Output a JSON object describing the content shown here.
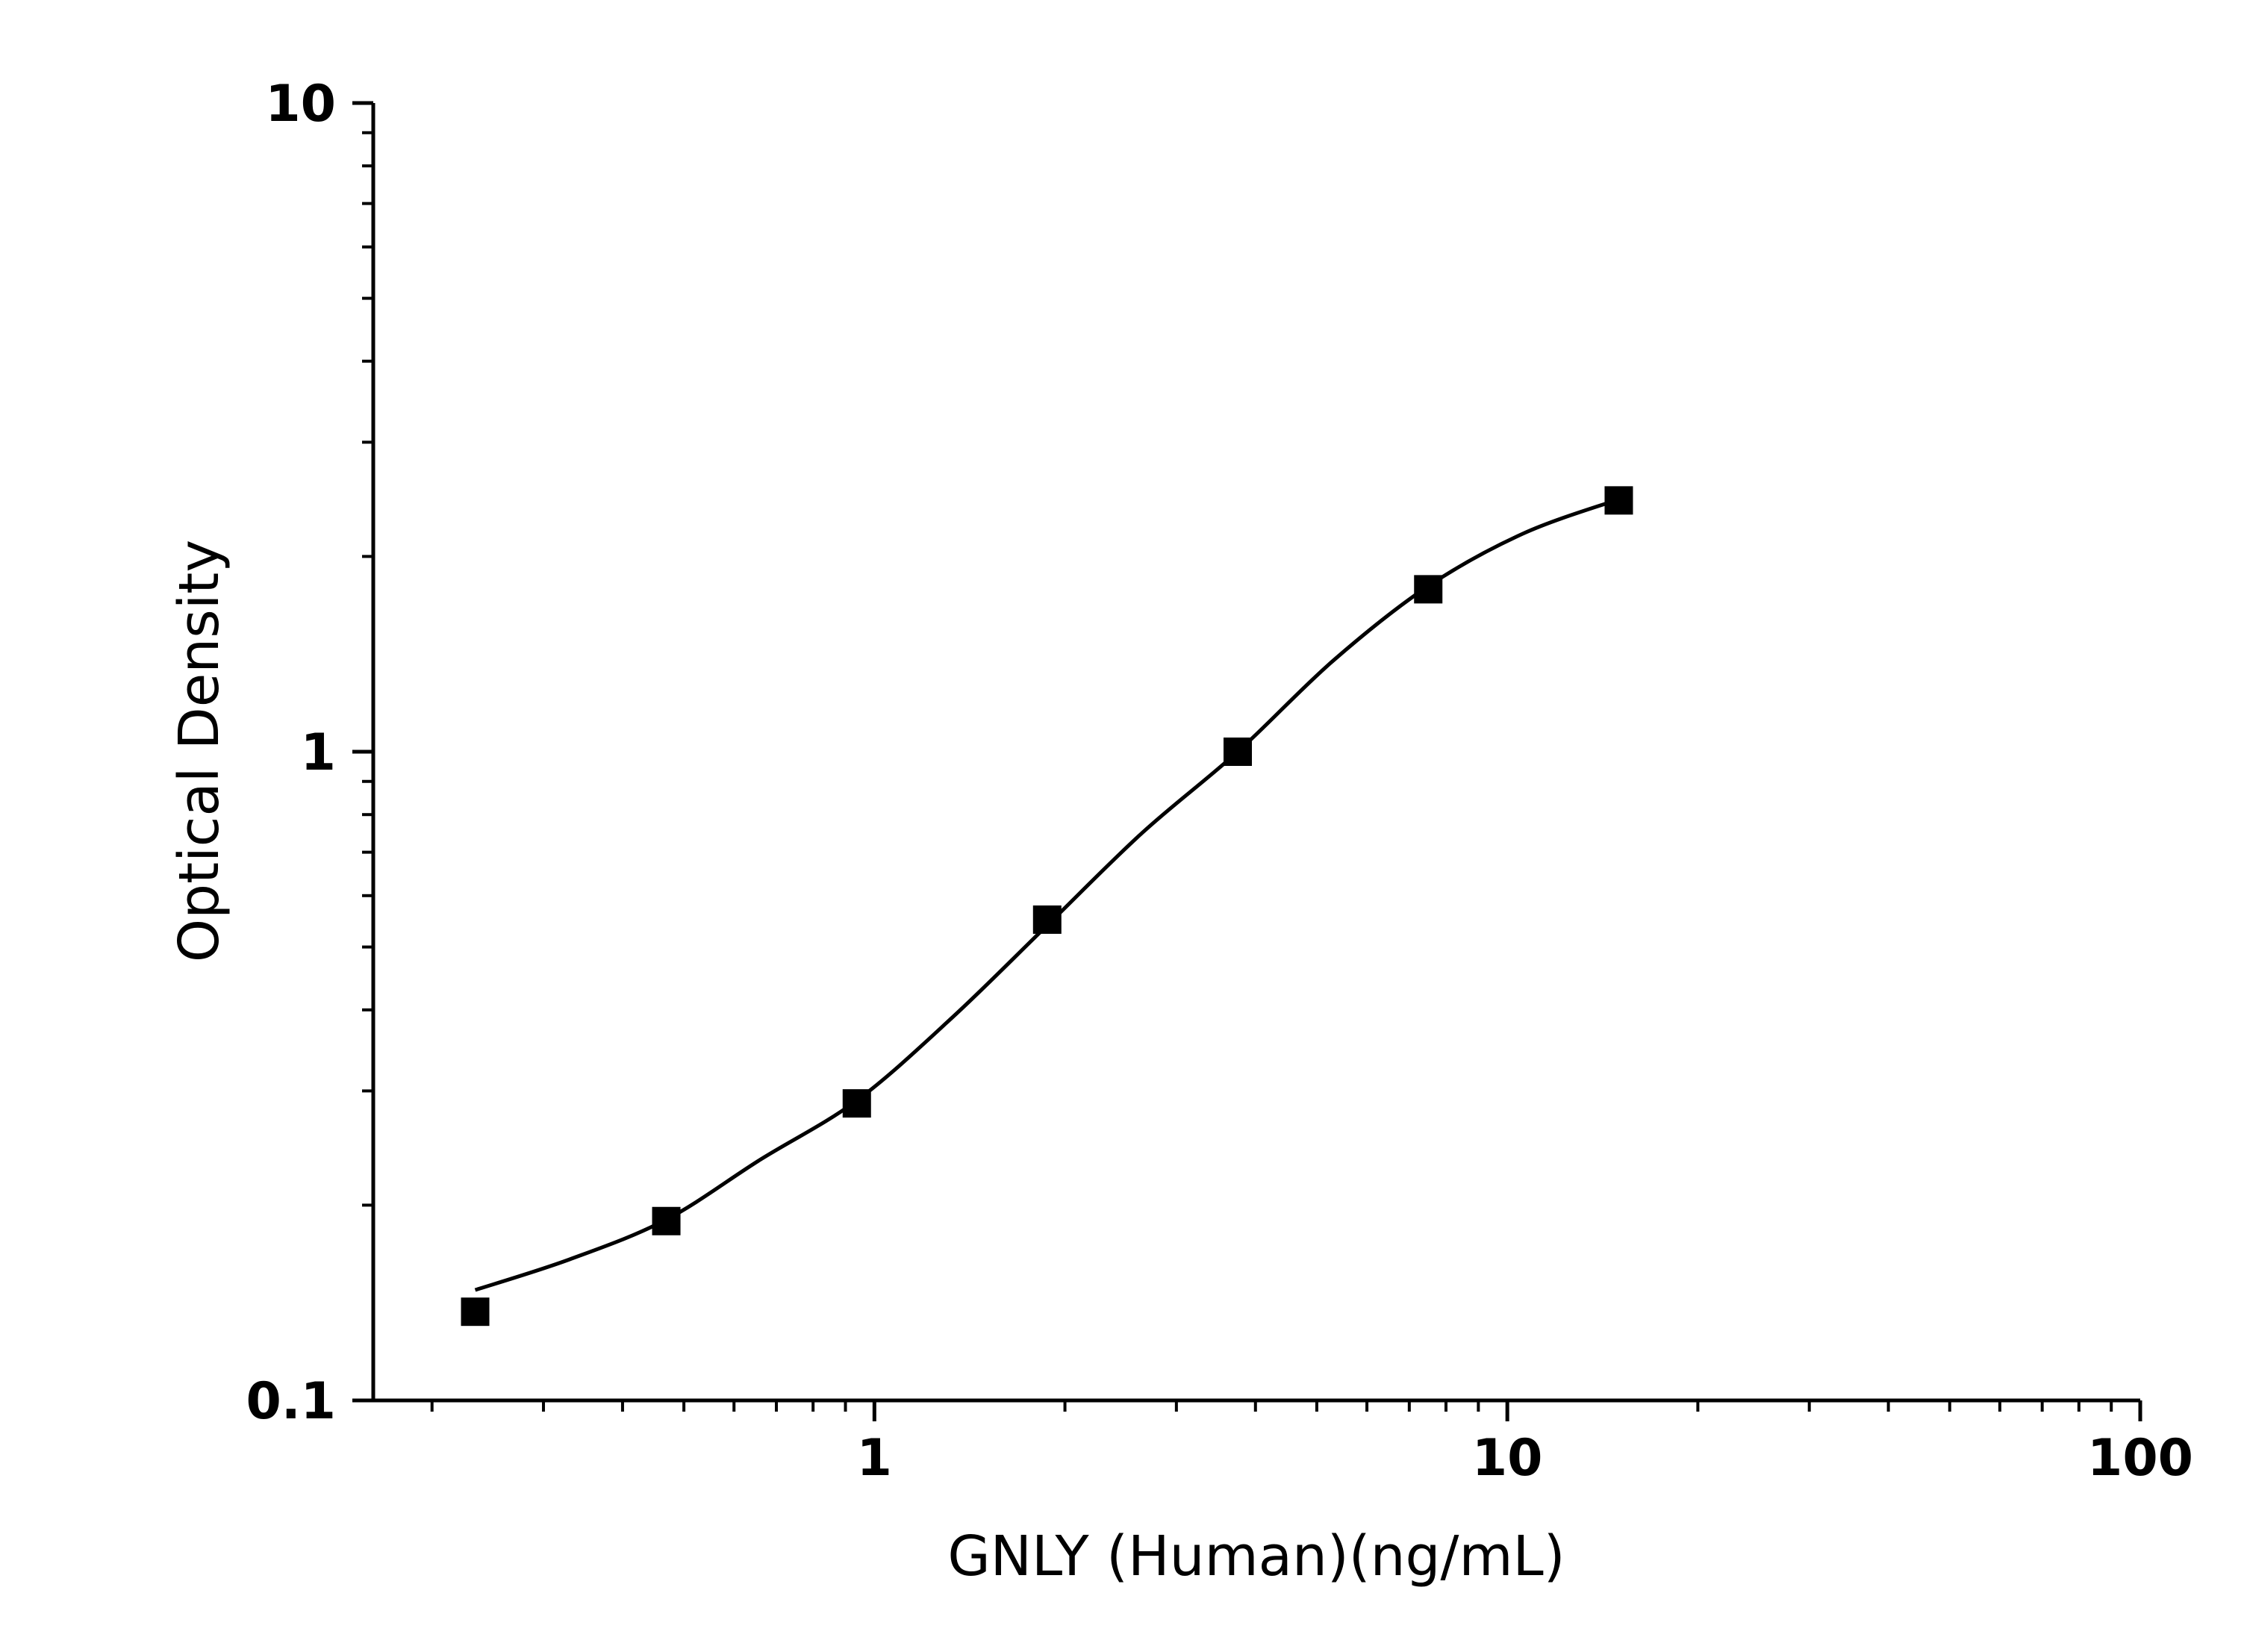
{
  "chart_data": {
    "type": "scatter",
    "x_label": "GNLY (Human)(ng/mL)",
    "y_label": "Optical Density",
    "x": [
      0.234,
      0.469,
      0.938,
      1.875,
      3.75,
      7.5,
      15
    ],
    "values": [
      0.137,
      0.189,
      0.287,
      0.551,
      1.0,
      1.78,
      2.44
    ],
    "color": "#000000",
    "fit": {
      "x": [
        0.234,
        0.33,
        0.469,
        0.66,
        0.938,
        1.33,
        1.875,
        2.65,
        3.75,
        5.3,
        7.5,
        10.6,
        15
      ],
      "values": [
        0.148,
        0.165,
        0.19,
        0.235,
        0.29,
        0.39,
        0.54,
        0.75,
        1.0,
        1.38,
        1.8,
        2.17,
        2.45
      ]
    },
    "xscale": "log",
    "yscale": "log",
    "xlim": [
      0.1615,
      100
    ],
    "ylim": [
      0.1,
      10
    ],
    "xticks": [
      1,
      10,
      100
    ],
    "yticks": [
      0.1,
      1,
      10
    ],
    "xminorticks": [
      0.2,
      0.3,
      0.4,
      0.5,
      0.6,
      0.7,
      0.8,
      0.9,
      2,
      3,
      4,
      5,
      6,
      7,
      8,
      9,
      20,
      30,
      40,
      50,
      60,
      70,
      80,
      90
    ],
    "yminorticks": [
      0.2,
      0.3,
      0.4,
      0.5,
      0.6,
      0.7,
      0.8,
      0.9,
      2,
      3,
      4,
      5,
      6,
      7,
      8,
      9
    ],
    "grid": false
  }
}
